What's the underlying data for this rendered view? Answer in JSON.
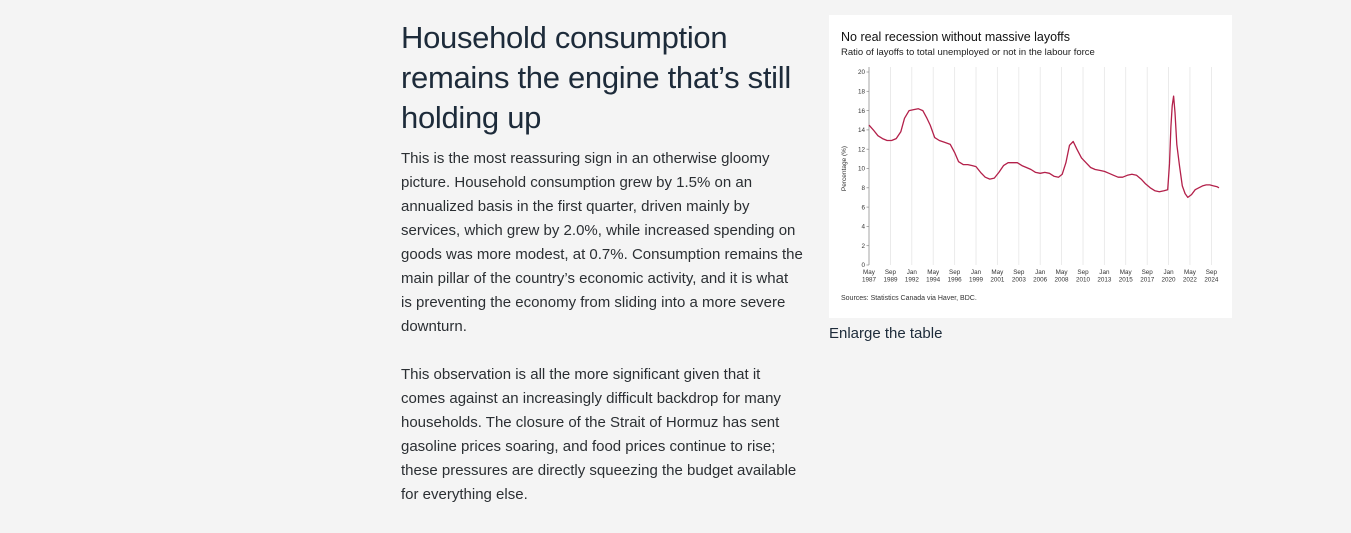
{
  "article": {
    "heading": "Household consumption remains the engine that’s still holding up",
    "paragraph_1": "This is the most reassuring sign in an otherwise gloomy picture. Household consumption grew by 1.5% on an annualized basis in the first quarter, driven mainly by services, which grew by 2.0%, while increased spending on goods was more modest, at 0.7%. Consumption remains the main pillar of the country’s economic activity, and it is what is preventing the economy from sliding into a more severe downturn.",
    "paragraph_2": "This observation is all the more significant given that it comes against an increasingly difficult backdrop for many households. The closure of the Strait of Hormuz has sent gasoline prices soaring, and food prices continue to rise; these pressures are directly squeezing the budget available for everything else."
  },
  "figure": {
    "enlarge_label": "Enlarge the table",
    "source": "Sources: Statistics Canada via Haver, BDC.",
    "line_color": "#b3204a"
  },
  "chart_data": {
    "type": "line",
    "title": "No real recession without massive layoffs",
    "subtitle": "Ratio of layoffs to total unemployed or not in the labour force",
    "xlabel": "",
    "ylabel": "Percentage (%)",
    "ylim": [
      0,
      20
    ],
    "yticks": [
      0,
      2,
      4,
      6,
      8,
      10,
      12,
      14,
      16,
      18,
      20
    ],
    "xlim": [
      1987.33,
      2025.5
    ],
    "xticks": [
      {
        "x": 1987.33,
        "label": [
          "May",
          "1987"
        ]
      },
      {
        "x": 1989.67,
        "label": [
          "Sep",
          "1989"
        ]
      },
      {
        "x": 1992.0,
        "label": [
          "Jan",
          "1992"
        ]
      },
      {
        "x": 1994.33,
        "label": [
          "May",
          "1994"
        ]
      },
      {
        "x": 1996.67,
        "label": [
          "Sep",
          "1996"
        ]
      },
      {
        "x": 1999.0,
        "label": [
          "Jan",
          "1999"
        ]
      },
      {
        "x": 2001.33,
        "label": [
          "May",
          "2001"
        ]
      },
      {
        "x": 2003.67,
        "label": [
          "Sep",
          "2003"
        ]
      },
      {
        "x": 2006.0,
        "label": [
          "Jan",
          "2006"
        ]
      },
      {
        "x": 2008.33,
        "label": [
          "May",
          "2008"
        ]
      },
      {
        "x": 2010.67,
        "label": [
          "Sep",
          "2010"
        ]
      },
      {
        "x": 2013.0,
        "label": [
          "Jan",
          "2013"
        ]
      },
      {
        "x": 2015.33,
        "label": [
          "May",
          "2015"
        ]
      },
      {
        "x": 2017.67,
        "label": [
          "Sep",
          "2017"
        ]
      },
      {
        "x": 2020.0,
        "label": [
          "Jan",
          "2020"
        ]
      },
      {
        "x": 2022.33,
        "label": [
          "May",
          "2022"
        ]
      },
      {
        "x": 2024.67,
        "label": [
          "Sep",
          "2024"
        ]
      }
    ],
    "grid": "vertical",
    "series": [
      {
        "x": [
          1987.33,
          1987.8,
          1988.3,
          1988.8,
          1989.3,
          1989.8,
          1990.3,
          1990.8,
          1991.2,
          1991.7,
          1992.2,
          1992.7,
          1993.2,
          1993.6,
          1994.0,
          1994.5,
          1995.0,
          1995.6,
          1996.2,
          1996.7,
          1997.1,
          1997.6,
          1998.1,
          1998.6,
          1999.0,
          1999.5,
          2000.0,
          2000.5,
          2001.0,
          2001.5,
          2002.0,
          2002.5,
          2003.0,
          2003.5,
          2004.0,
          2004.5,
          2005.0,
          2005.5,
          2006.0,
          2006.5,
          2007.0,
          2007.5,
          2008.0,
          2008.4,
          2008.8,
          2009.2,
          2009.6,
          2010.0,
          2010.5,
          2011.0,
          2011.5,
          2012.0,
          2012.5,
          2013.0,
          2013.5,
          2014.0,
          2014.5,
          2015.0,
          2015.5,
          2016.0,
          2016.5,
          2017.0,
          2017.5,
          2018.0,
          2018.5,
          2019.0,
          2019.5,
          2019.9,
          2020.1,
          2020.25,
          2020.4,
          2020.55,
          2020.7,
          2020.9,
          2021.2,
          2021.5,
          2021.8,
          2022.1,
          2022.5,
          2022.9,
          2023.3,
          2023.7,
          2024.1,
          2024.5,
          2024.9,
          2025.3,
          2025.5
        ],
        "values": [
          14.5,
          14.0,
          13.4,
          13.1,
          12.9,
          12.9,
          13.1,
          13.8,
          15.2,
          16.0,
          16.1,
          16.2,
          16.0,
          15.3,
          14.5,
          13.2,
          12.9,
          12.7,
          12.5,
          11.6,
          10.7,
          10.4,
          10.4,
          10.3,
          10.2,
          9.6,
          9.1,
          8.9,
          9.0,
          9.6,
          10.3,
          10.6,
          10.6,
          10.6,
          10.3,
          10.1,
          9.9,
          9.6,
          9.5,
          9.6,
          9.5,
          9.2,
          9.1,
          9.4,
          10.6,
          12.4,
          12.8,
          12.0,
          11.1,
          10.6,
          10.1,
          9.9,
          9.8,
          9.7,
          9.5,
          9.3,
          9.1,
          9.1,
          9.3,
          9.4,
          9.3,
          8.9,
          8.4,
          8.0,
          7.7,
          7.6,
          7.7,
          7.8,
          10.5,
          14.3,
          16.5,
          17.5,
          15.8,
          12.5,
          10.2,
          8.2,
          7.4,
          7.0,
          7.3,
          7.8,
          8.0,
          8.2,
          8.3,
          8.3,
          8.2,
          8.1,
          8.0
        ]
      }
    ]
  }
}
